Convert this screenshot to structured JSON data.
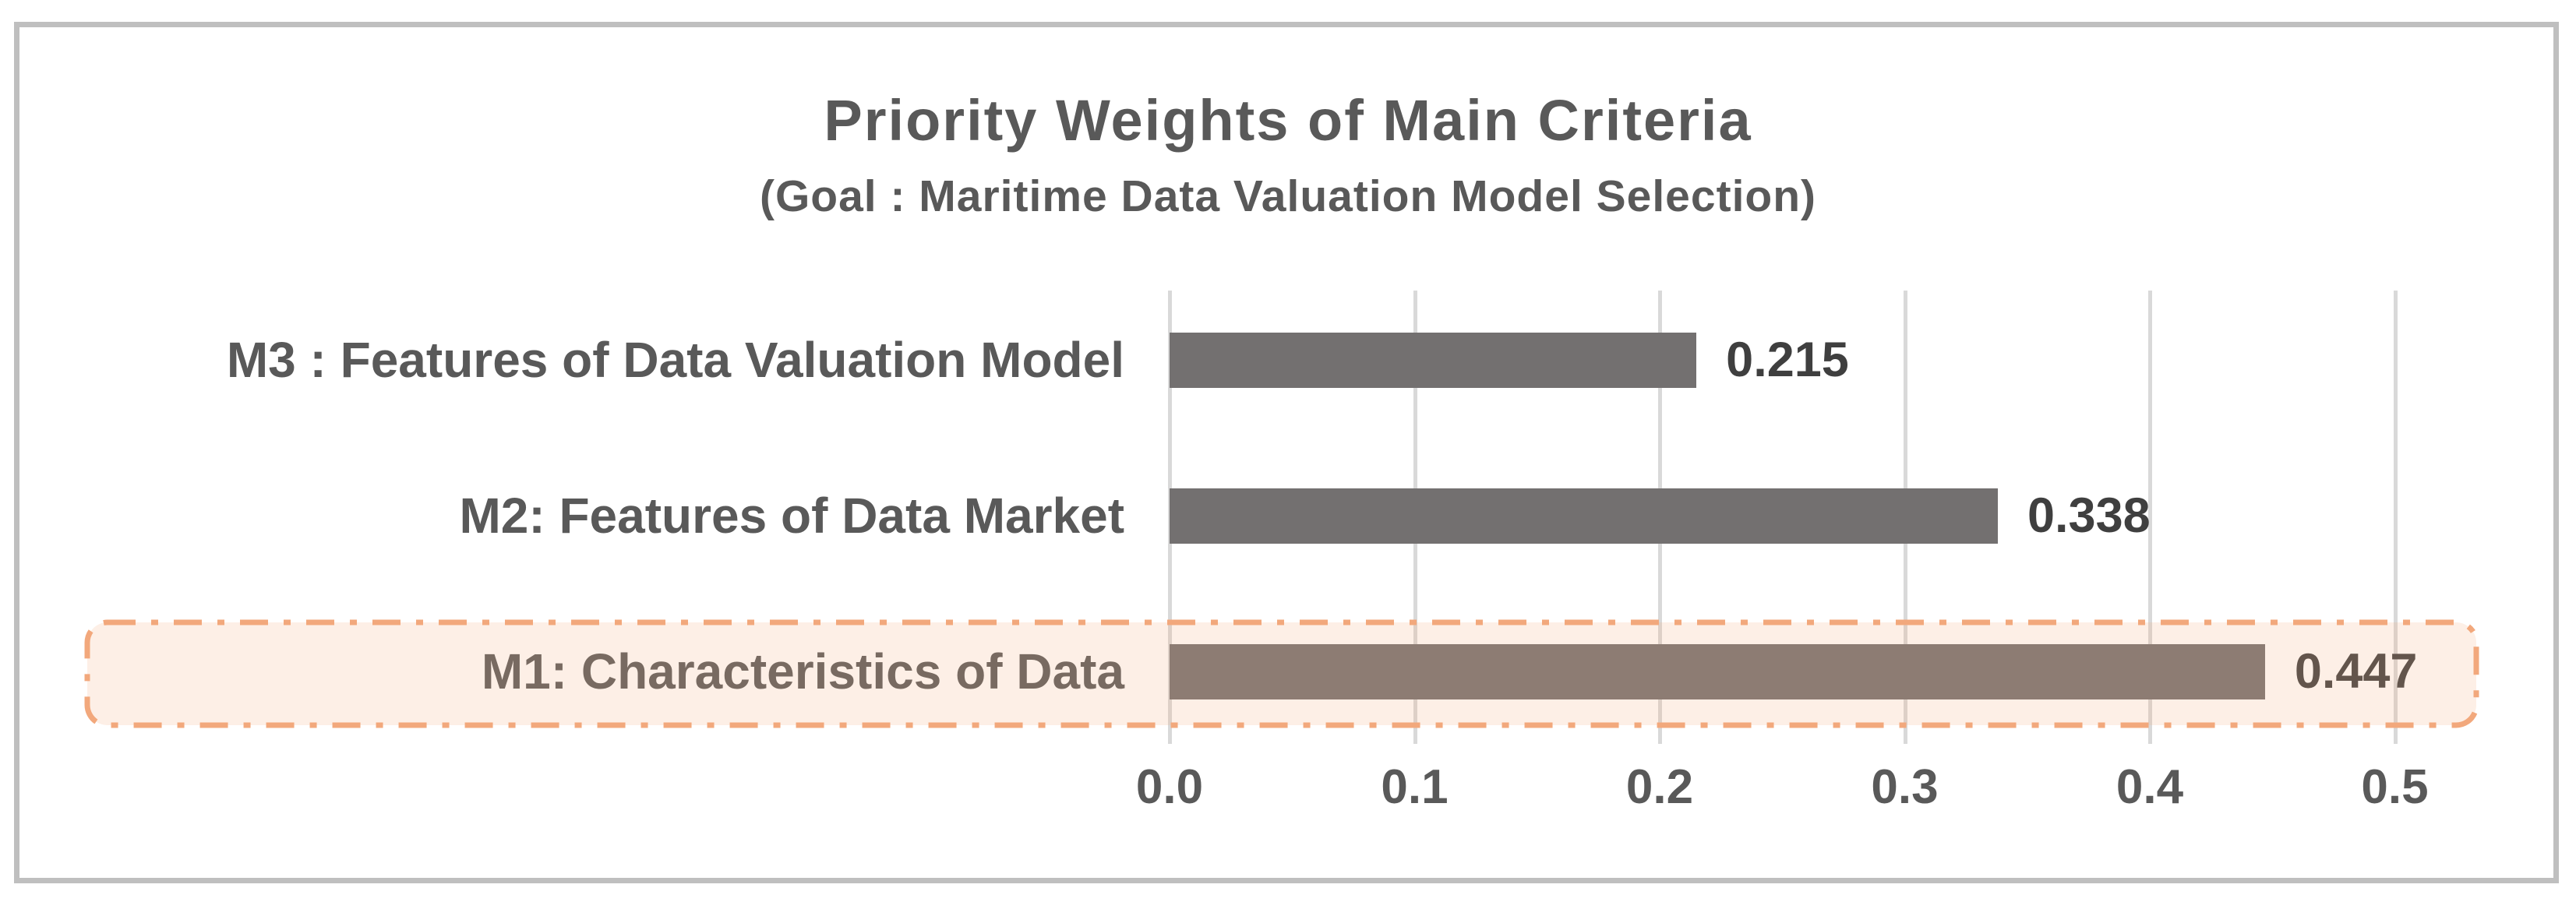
{
  "chart": {
    "title": "Priority Weights of Main Criteria",
    "subtitle": "(Goal : Maritime Data Valuation Model Selection)"
  },
  "chart_data": {
    "type": "bar",
    "orientation": "horizontal",
    "title": "Priority Weights of Main Criteria",
    "subtitle": "(Goal : Maritime Data Valuation Model Selection)",
    "xlabel": "",
    "ylabel": "",
    "categories": [
      "M3 : Features of Data Valuation Model",
      "M2: Features of Data Market",
      "M1: Characteristics of Data"
    ],
    "values": [
      0.215,
      0.338,
      0.447
    ],
    "value_labels": [
      "0.215",
      "0.338",
      "0.447"
    ],
    "rows_top_to_bottom": [
      {
        "label": "M3 : Features of Data Valuation Model",
        "value": 0.215,
        "value_label": "0.215",
        "highlighted": false
      },
      {
        "label": "M2: Features of Data Market",
        "value": 0.338,
        "value_label": "0.338",
        "highlighted": false
      },
      {
        "label": "M1: Characteristics of Data",
        "value": 0.447,
        "value_label": "0.447",
        "highlighted": true
      }
    ],
    "x_ticks": [
      "0.0",
      "0.1",
      "0.2",
      "0.3",
      "0.4",
      "0.5"
    ],
    "xlim": [
      0,
      0.55
    ],
    "grid": true,
    "legend": false,
    "highlighted_category": "M1: Characteristics of Data"
  },
  "colors": {
    "bar": "#737070",
    "grid": "#d9d9d9",
    "text": "#595959",
    "value_text": "#3f3f3f",
    "frame_border": "#bfbfbf",
    "highlight_border": "#f2a87c",
    "highlight_fill": "rgba(244,177,131,0.20)"
  }
}
